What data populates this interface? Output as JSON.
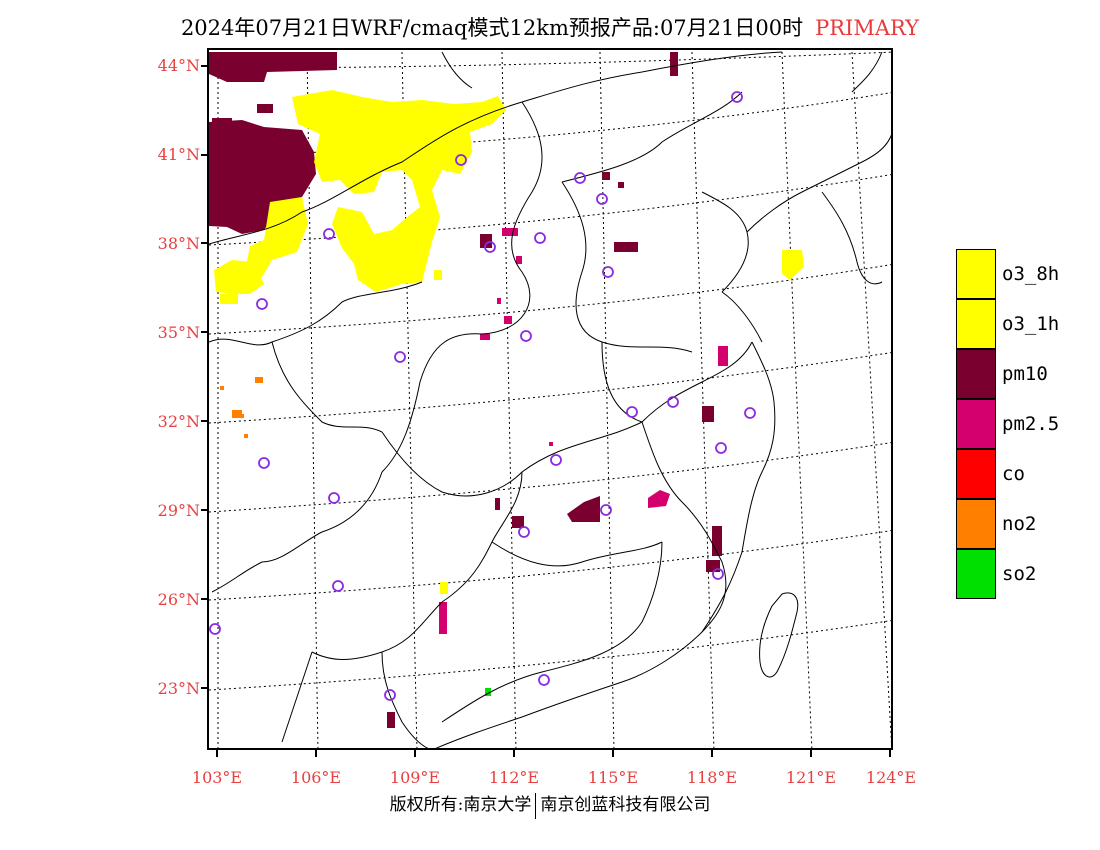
{
  "title": {
    "text": "2024年07月21日WRF/cmaq模式12km预报产品:07月21日00时",
    "tag": "PRIMARY"
  },
  "map": {
    "lat_labels": [
      "44°N",
      "41°N",
      "38°N",
      "35°N",
      "32°N",
      "29°N",
      "26°N",
      "23°N"
    ],
    "lon_labels": [
      "103°E",
      "106°E",
      "109°E",
      "112°E",
      "115°E",
      "118°E",
      "121°E",
      "124°E"
    ],
    "station_marker": "circle-icon"
  },
  "legend": [
    {
      "label": "o3_8h",
      "color": "#ffff00"
    },
    {
      "label": "o3_1h",
      "color": "#ffff00"
    },
    {
      "label": "pm10",
      "color": "#7a0030"
    },
    {
      "label": "pm2.5",
      "color": "#d4006e"
    },
    {
      "label": "co",
      "color": "#ff0000"
    },
    {
      "label": "no2",
      "color": "#ff8000"
    },
    {
      "label": "so2",
      "color": "#00e000"
    }
  ],
  "footer": {
    "left": "版权所有:南京大学",
    "right": "南京创蓝科技有限公司"
  }
}
